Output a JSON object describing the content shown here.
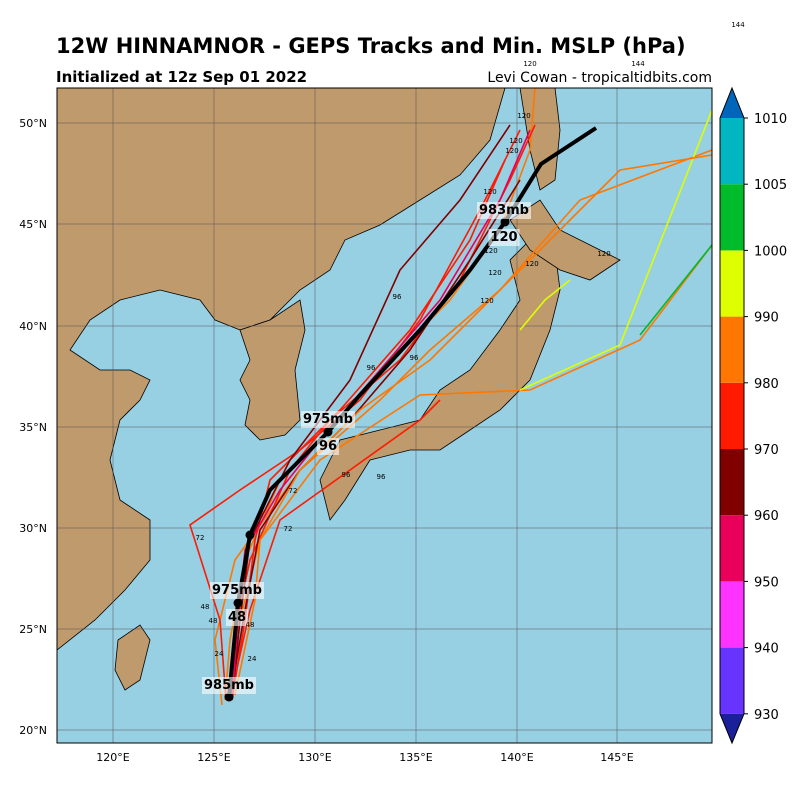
{
  "header": {
    "title": "12W HINNAMNOR - GEPS Tracks and Min. MSLP (hPa)",
    "subtitle": "Initialized at 12z Sep 01 2022",
    "credit": "Levi Cowan - tropicaltidbits.com"
  },
  "map": {
    "lat_labels": [
      "20°N",
      "25°N",
      "30°N",
      "35°N",
      "40°N",
      "45°N",
      "50°N"
    ],
    "lon_labels": [
      "120°E",
      "125°E",
      "130°E",
      "135°E",
      "140°E",
      "145°E"
    ],
    "mean_labels": [
      "985mb",
      "975mb",
      "48",
      "975mb",
      "96",
      "983mb",
      "120"
    ],
    "ensemble_labels": [
      "144",
      "120",
      "144",
      "120",
      "120",
      "120",
      "120",
      "120",
      "120",
      "120",
      "120",
      "120",
      "96",
      "96",
      "96",
      "96",
      "96",
      "72",
      "72",
      "72",
      "48",
      "48",
      "48",
      "24",
      "24"
    ]
  },
  "colorbar": {
    "labels": [
      "930",
      "940",
      "950",
      "960",
      "970",
      "980",
      "990",
      "1000",
      "1005",
      "1010"
    ],
    "colors": [
      "#1a1f9a",
      "#6633ff",
      "#ff33ff",
      "#e8005a",
      "#800000",
      "#ff1a00",
      "#ff7700",
      "#ddff00",
      "#00bb2a",
      "#00b6c0",
      "#0066bb"
    ]
  }
}
